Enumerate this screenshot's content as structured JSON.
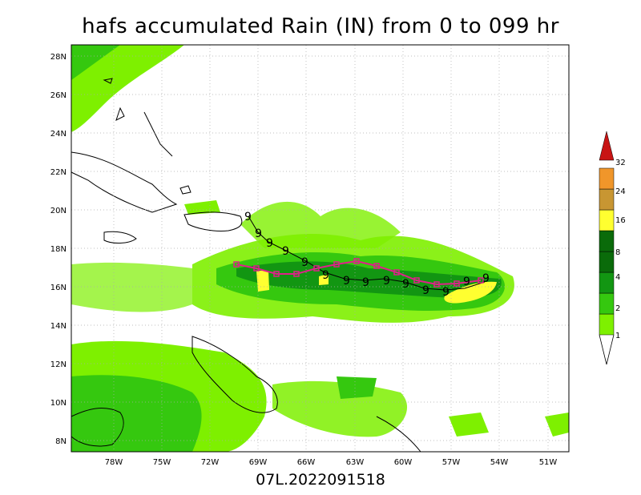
{
  "title": "hafs accumulated Rain (IN) from 0 to 099 hr",
  "subtitle": "07L.2022091518",
  "x_ticks": [
    "78W",
    "75W",
    "72W",
    "69W",
    "66W",
    "63W",
    "60W",
    "57W",
    "54W",
    "51W"
  ],
  "y_ticks": [
    "28N",
    "26N",
    "24N",
    "22N",
    "20N",
    "18N",
    "16N",
    "14N",
    "12N",
    "10N",
    "8N"
  ],
  "legend": {
    "labels": [
      "1",
      "2",
      "4",
      "8",
      "16",
      "24",
      "32"
    ],
    "colors": [
      "#7ef000",
      "#35c80f",
      "#129612",
      "#0a6b0a",
      "#ffff30",
      "#c89632",
      "#f0962a",
      "#c81414"
    ]
  },
  "colors": {
    "land_border": "#000000",
    "grid": "#aaaaaa",
    "track": "#e0208a",
    "track_line": "#000000"
  },
  "track_marker": "9",
  "icons": {
    "storm": "tropical-storm-symbol",
    "square": "hollow-square-marker"
  }
}
